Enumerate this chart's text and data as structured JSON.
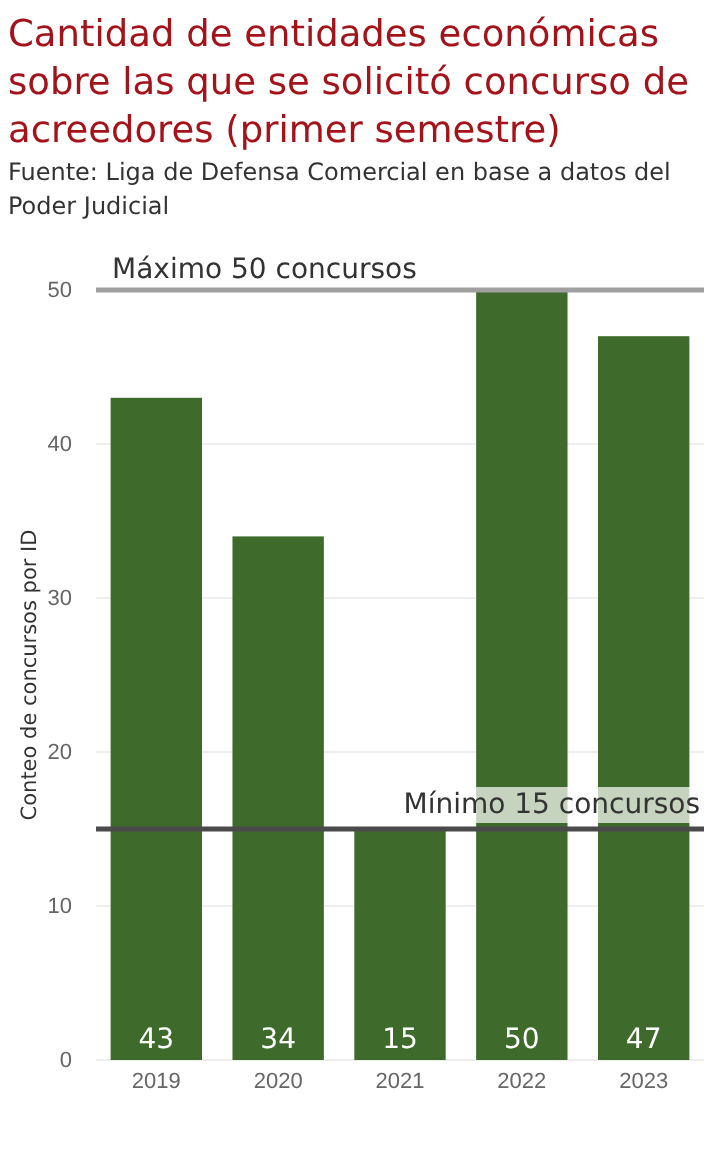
{
  "chart_data": {
    "type": "bar",
    "title": "Cantidad de entidades económicas sobre las que se solicitó concurso de acreedores (primer semestre)",
    "subtitle": "Fuente: Liga de Defensa Comercial en base a datos del Poder Judicial",
    "ylabel": "Conteo de concursos por ID",
    "categories": [
      "2019",
      "2020",
      "2021",
      "2022",
      "2023"
    ],
    "values": [
      43,
      34,
      15,
      50,
      47
    ],
    "color": "#3e6b2b",
    "ylim": [
      0,
      50
    ],
    "yticks": [
      0,
      10,
      20,
      30,
      40,
      50
    ],
    "grid": "y",
    "data_labels": true,
    "ref_lines": [
      {
        "axis": "y",
        "value": 50,
        "label": "Máximo 50 concursos",
        "color": "#a0a0a0"
      },
      {
        "axis": "y",
        "value": 15,
        "label": "Mínimo 15 concursos",
        "color": "#4a4a4a"
      }
    ]
  }
}
